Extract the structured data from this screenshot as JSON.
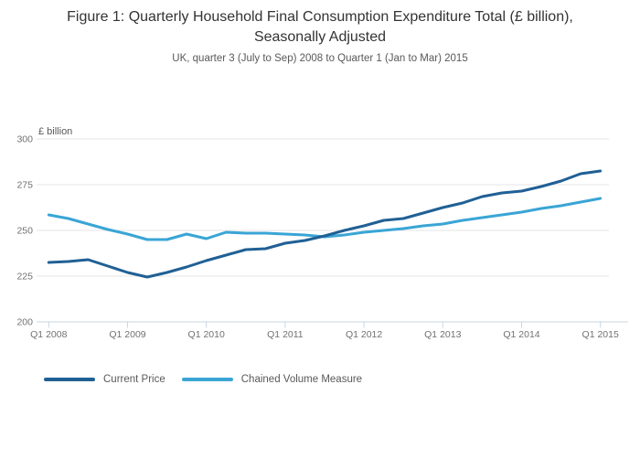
{
  "header": {
    "title": "Figure 1: Quarterly Household Final Consumption Expenditure Total (£ billion), Seasonally Adjusted",
    "subtitle": "UK, quarter 3 (July to Sep) 2008 to Quarter 1 (Jan to Mar) 2015"
  },
  "chart_data": {
    "type": "line",
    "title": "Figure 1: Quarterly Household Final Consumption Expenditure Total (£ billion), Seasonally Adjusted",
    "subtitle": "UK, quarter 3 (July to Sep) 2008 to Quarter 1 (Jan to Mar) 2015",
    "ylabel": "£ billion",
    "xlabel": "",
    "ylim": [
      200,
      300
    ],
    "y_ticks": [
      200,
      225,
      250,
      275,
      300
    ],
    "grid": "horizontal",
    "legend_position": "bottom-left",
    "x_tick_labels": [
      "Q1 2008",
      "Q1 2009",
      "Q1 2010",
      "Q1 2011",
      "Q1 2012",
      "Q1 2013",
      "Q1 2014",
      "Q1 2015"
    ],
    "categories": [
      "Q1 2008",
      "Q2 2008",
      "Q3 2008",
      "Q4 2008",
      "Q1 2009",
      "Q2 2009",
      "Q3 2009",
      "Q4 2009",
      "Q1 2010",
      "Q2 2010",
      "Q3 2010",
      "Q4 2010",
      "Q1 2011",
      "Q2 2011",
      "Q3 2011",
      "Q4 2011",
      "Q1 2012",
      "Q2 2012",
      "Q3 2012",
      "Q4 2012",
      "Q1 2013",
      "Q2 2013",
      "Q3 2013",
      "Q4 2013",
      "Q1 2014",
      "Q2 2014",
      "Q3 2014",
      "Q4 2014",
      "Q1 2015"
    ],
    "series": [
      {
        "name": "Current Price",
        "color": "#206095",
        "values": [
          232.5,
          233,
          234,
          230.5,
          227,
          224.5,
          227,
          230,
          233.5,
          236.5,
          239.5,
          240,
          243,
          244.5,
          247,
          250,
          252.5,
          255.5,
          256.5,
          259.5,
          262.5,
          265,
          268.5,
          270.5,
          271.5,
          274,
          277,
          281,
          282.5
        ]
      },
      {
        "name": "Chained Volume Measure",
        "color": "#3aa5d5",
        "values": [
          258.5,
          256.5,
          253.5,
          250.5,
          248,
          245,
          245,
          248,
          245.5,
          249,
          248.5,
          248.5,
          248,
          247.5,
          246.5,
          247.5,
          249,
          250,
          251,
          252.5,
          253.5,
          255.5,
          257,
          258.5,
          260,
          262,
          263.5,
          265.5,
          267.5
        ]
      }
    ]
  },
  "colors": {
    "grid": "#e4e4e4",
    "axis": "#c9d7e2",
    "title_text": "#333333",
    "subtitle_text": "#595959",
    "tick_text": "#717171"
  }
}
